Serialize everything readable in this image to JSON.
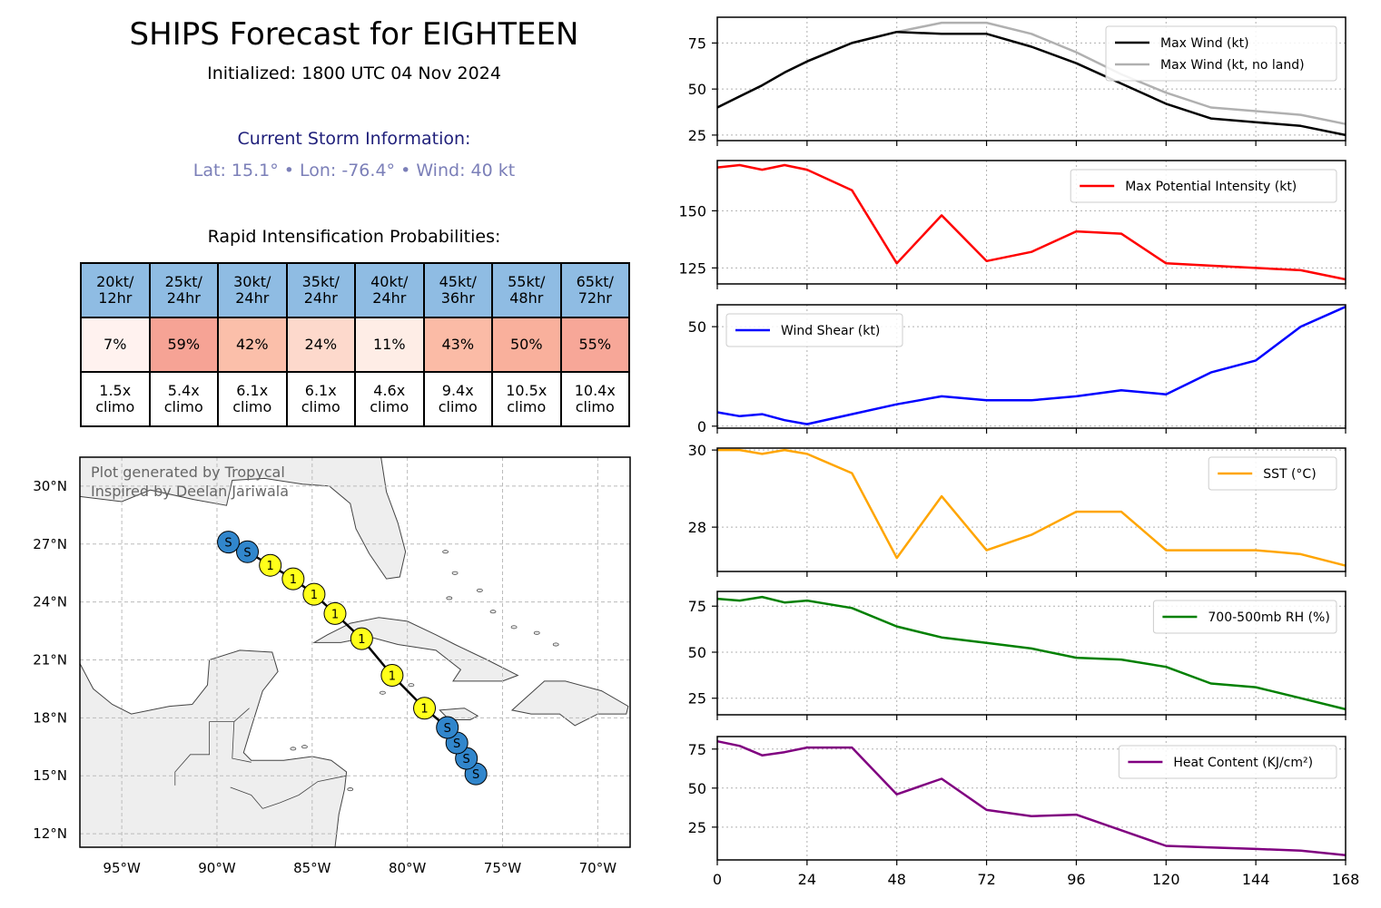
{
  "header": {
    "title": "SHIPS Forecast for EIGHTEEN",
    "initialized": "Initialized: 1800 UTC 04 Nov 2024",
    "current_heading": "Current Storm Information:",
    "current_values": "Lat: 15.1°  • Lon: -76.4°  • Wind: 40 kt"
  },
  "ri": {
    "heading": "Rapid Intensification Probabilities:",
    "columns": [
      {
        "l1": "20kt/",
        "l2": "12hr",
        "pct": "7%",
        "clim1": "1.5x",
        "clim2": "climo",
        "color": "#fff2ef"
      },
      {
        "l1": "25kt/",
        "l2": "24hr",
        "pct": "59%",
        "clim1": "5.4x",
        "clim2": "climo",
        "color": "#f6a395"
      },
      {
        "l1": "30kt/",
        "l2": "24hr",
        "pct": "42%",
        "clim1": "6.1x",
        "clim2": "climo",
        "color": "#fbbfaa"
      },
      {
        "l1": "35kt/",
        "l2": "24hr",
        "pct": "24%",
        "clim1": "6.1x",
        "clim2": "climo",
        "color": "#fdd9cc"
      },
      {
        "l1": "40kt/",
        "l2": "24hr",
        "pct": "11%",
        "clim1": "4.6x",
        "clim2": "climo",
        "color": "#feede6"
      },
      {
        "l1": "45kt/",
        "l2": "36hr",
        "pct": "43%",
        "clim1": "9.4x",
        "clim2": "climo",
        "color": "#fbbba6"
      },
      {
        "l1": "55kt/",
        "l2": "48hr",
        "pct": "50%",
        "clim1": "10.5x",
        "clim2": "climo",
        "color": "#f9b09c"
      },
      {
        "l1": "65kt/",
        "l2": "72hr",
        "pct": "55%",
        "clim1": "10.4x",
        "clim2": "climo",
        "color": "#f7a798"
      }
    ]
  },
  "map": {
    "credit1": "Plot generated by Tropycal",
    "credit2": "Inspired by Deelan Jariwala",
    "lon_ticks": [
      {
        "v": -95,
        "label": "95°W"
      },
      {
        "v": -90,
        "label": "90°W"
      },
      {
        "v": -85,
        "label": "85°W"
      },
      {
        "v": -80,
        "label": "80°W"
      },
      {
        "v": -75,
        "label": "75°W"
      },
      {
        "v": -70,
        "label": "70°W"
      }
    ],
    "lat_ticks": [
      {
        "v": 12,
        "label": "12°N"
      },
      {
        "v": 15,
        "label": "15°N"
      },
      {
        "v": 18,
        "label": "18°N"
      },
      {
        "v": 21,
        "label": "21°N"
      },
      {
        "v": 24,
        "label": "24°N"
      },
      {
        "v": 27,
        "label": "27°N"
      },
      {
        "v": 30,
        "label": "30°N"
      }
    ],
    "track": [
      {
        "lat": 15.1,
        "lon": -76.4,
        "cat": "S"
      },
      {
        "lat": 15.9,
        "lon": -76.9,
        "cat": "S"
      },
      {
        "lat": 16.7,
        "lon": -77.4,
        "cat": "S"
      },
      {
        "lat": 17.5,
        "lon": -77.9,
        "cat": "S"
      },
      {
        "lat": 18.5,
        "lon": -79.1,
        "cat": "1"
      },
      {
        "lat": 20.2,
        "lon": -80.8,
        "cat": "1"
      },
      {
        "lat": 22.1,
        "lon": -82.4,
        "cat": "1"
      },
      {
        "lat": 23.4,
        "lon": -83.8,
        "cat": "1"
      },
      {
        "lat": 24.4,
        "lon": -84.9,
        "cat": "1"
      },
      {
        "lat": 25.2,
        "lon": -86.0,
        "cat": "1"
      },
      {
        "lat": 25.9,
        "lon": -87.2,
        "cat": "1"
      },
      {
        "lat": 26.6,
        "lon": -88.4,
        "cat": "S"
      },
      {
        "lat": 27.1,
        "lon": -89.4,
        "cat": "S"
      }
    ],
    "colors": {
      "S": "#3186cc",
      "1": "#ffff1a"
    }
  },
  "chart_data": [
    {
      "type": "line",
      "x": [
        0,
        6,
        12,
        18,
        24,
        36,
        48,
        60,
        72,
        84,
        96,
        108,
        120,
        132,
        144,
        156,
        168
      ],
      "series": [
        {
          "name": "Max Wind (kt)",
          "color": "#000000",
          "values": [
            40,
            46,
            52,
            59,
            65,
            75,
            81,
            80,
            80,
            73,
            64,
            53,
            42,
            34,
            32,
            30,
            25
          ]
        },
        {
          "name": "Max Wind (kt, no land)",
          "color": "#b0b0b0",
          "values": [
            40,
            46,
            52,
            59,
            65,
            75,
            81,
            86,
            86,
            80,
            70,
            58,
            48,
            40,
            38,
            36,
            31
          ]
        }
      ],
      "yticks": [
        25,
        50,
        75
      ],
      "ylim": [
        22,
        89
      ],
      "legend": "top-right"
    },
    {
      "type": "line",
      "x": [
        0,
        6,
        12,
        18,
        24,
        36,
        48,
        60,
        72,
        84,
        96,
        108,
        120,
        132,
        144,
        156,
        168
      ],
      "series": [
        {
          "name": "Max Potential Intensity (kt)",
          "color": "#ff0000",
          "values": [
            169,
            170,
            168,
            170,
            168,
            159,
            127,
            148,
            128,
            132,
            141,
            140,
            127,
            126,
            125,
            124,
            120
          ]
        }
      ],
      "yticks": [
        125,
        150
      ],
      "ylim": [
        118,
        172
      ],
      "legend": "top-right"
    },
    {
      "type": "line",
      "x": [
        0,
        6,
        12,
        18,
        24,
        36,
        48,
        60,
        72,
        84,
        96,
        108,
        120,
        132,
        144,
        156,
        168
      ],
      "series": [
        {
          "name": "Wind Shear (kt)",
          "color": "#0000ff",
          "values": [
            7,
            5,
            6,
            3,
            1,
            6,
            11,
            15,
            13,
            13,
            15,
            18,
            16,
            27,
            33,
            50,
            60
          ]
        }
      ],
      "yticks": [
        0,
        50
      ],
      "ylim": [
        -1,
        61
      ],
      "legend": "top-left"
    },
    {
      "type": "line",
      "x": [
        0,
        6,
        12,
        18,
        24,
        36,
        48,
        60,
        72,
        84,
        96,
        108,
        120,
        132,
        144,
        156,
        168
      ],
      "series": [
        {
          "name": "SST (°C)",
          "color": "#ffa500",
          "values": [
            30.0,
            30.0,
            29.9,
            30.0,
            29.9,
            29.4,
            27.2,
            28.8,
            27.4,
            27.8,
            28.4,
            28.4,
            27.4,
            27.4,
            27.4,
            27.3,
            27.0
          ]
        }
      ],
      "yticks": [
        28,
        30
      ],
      "ylim": [
        26.85,
        30.05
      ],
      "legend": "top-right"
    },
    {
      "type": "line",
      "x": [
        0,
        6,
        12,
        18,
        24,
        36,
        48,
        60,
        72,
        84,
        96,
        108,
        120,
        132,
        144,
        156,
        168
      ],
      "series": [
        {
          "name": "700-500mb RH (%)",
          "color": "#008000",
          "values": [
            79,
            78,
            80,
            77,
            78,
            74,
            64,
            58,
            55,
            52,
            47,
            46,
            42,
            33,
            31,
            25,
            19
          ]
        }
      ],
      "yticks": [
        25,
        50,
        75
      ],
      "ylim": [
        16,
        83
      ],
      "legend": "top-right"
    },
    {
      "type": "line",
      "x": [
        0,
        6,
        12,
        18,
        24,
        36,
        48,
        60,
        72,
        84,
        96,
        108,
        120,
        132,
        144,
        156,
        168
      ],
      "series": [
        {
          "name": "Heat Content (KJ/cm²)",
          "color": "#800080",
          "values": [
            80,
            77,
            71,
            73,
            76,
            76,
            46,
            56,
            36,
            32,
            33,
            23,
            13,
            12,
            11,
            10,
            7
          ]
        }
      ],
      "yticks": [
        25,
        50,
        75
      ],
      "ylim": [
        4,
        83
      ],
      "legend": "top-right"
    }
  ],
  "xaxis": {
    "ticks": [
      0,
      24,
      48,
      72,
      96,
      120,
      144,
      168
    ],
    "range": [
      0,
      168
    ]
  }
}
